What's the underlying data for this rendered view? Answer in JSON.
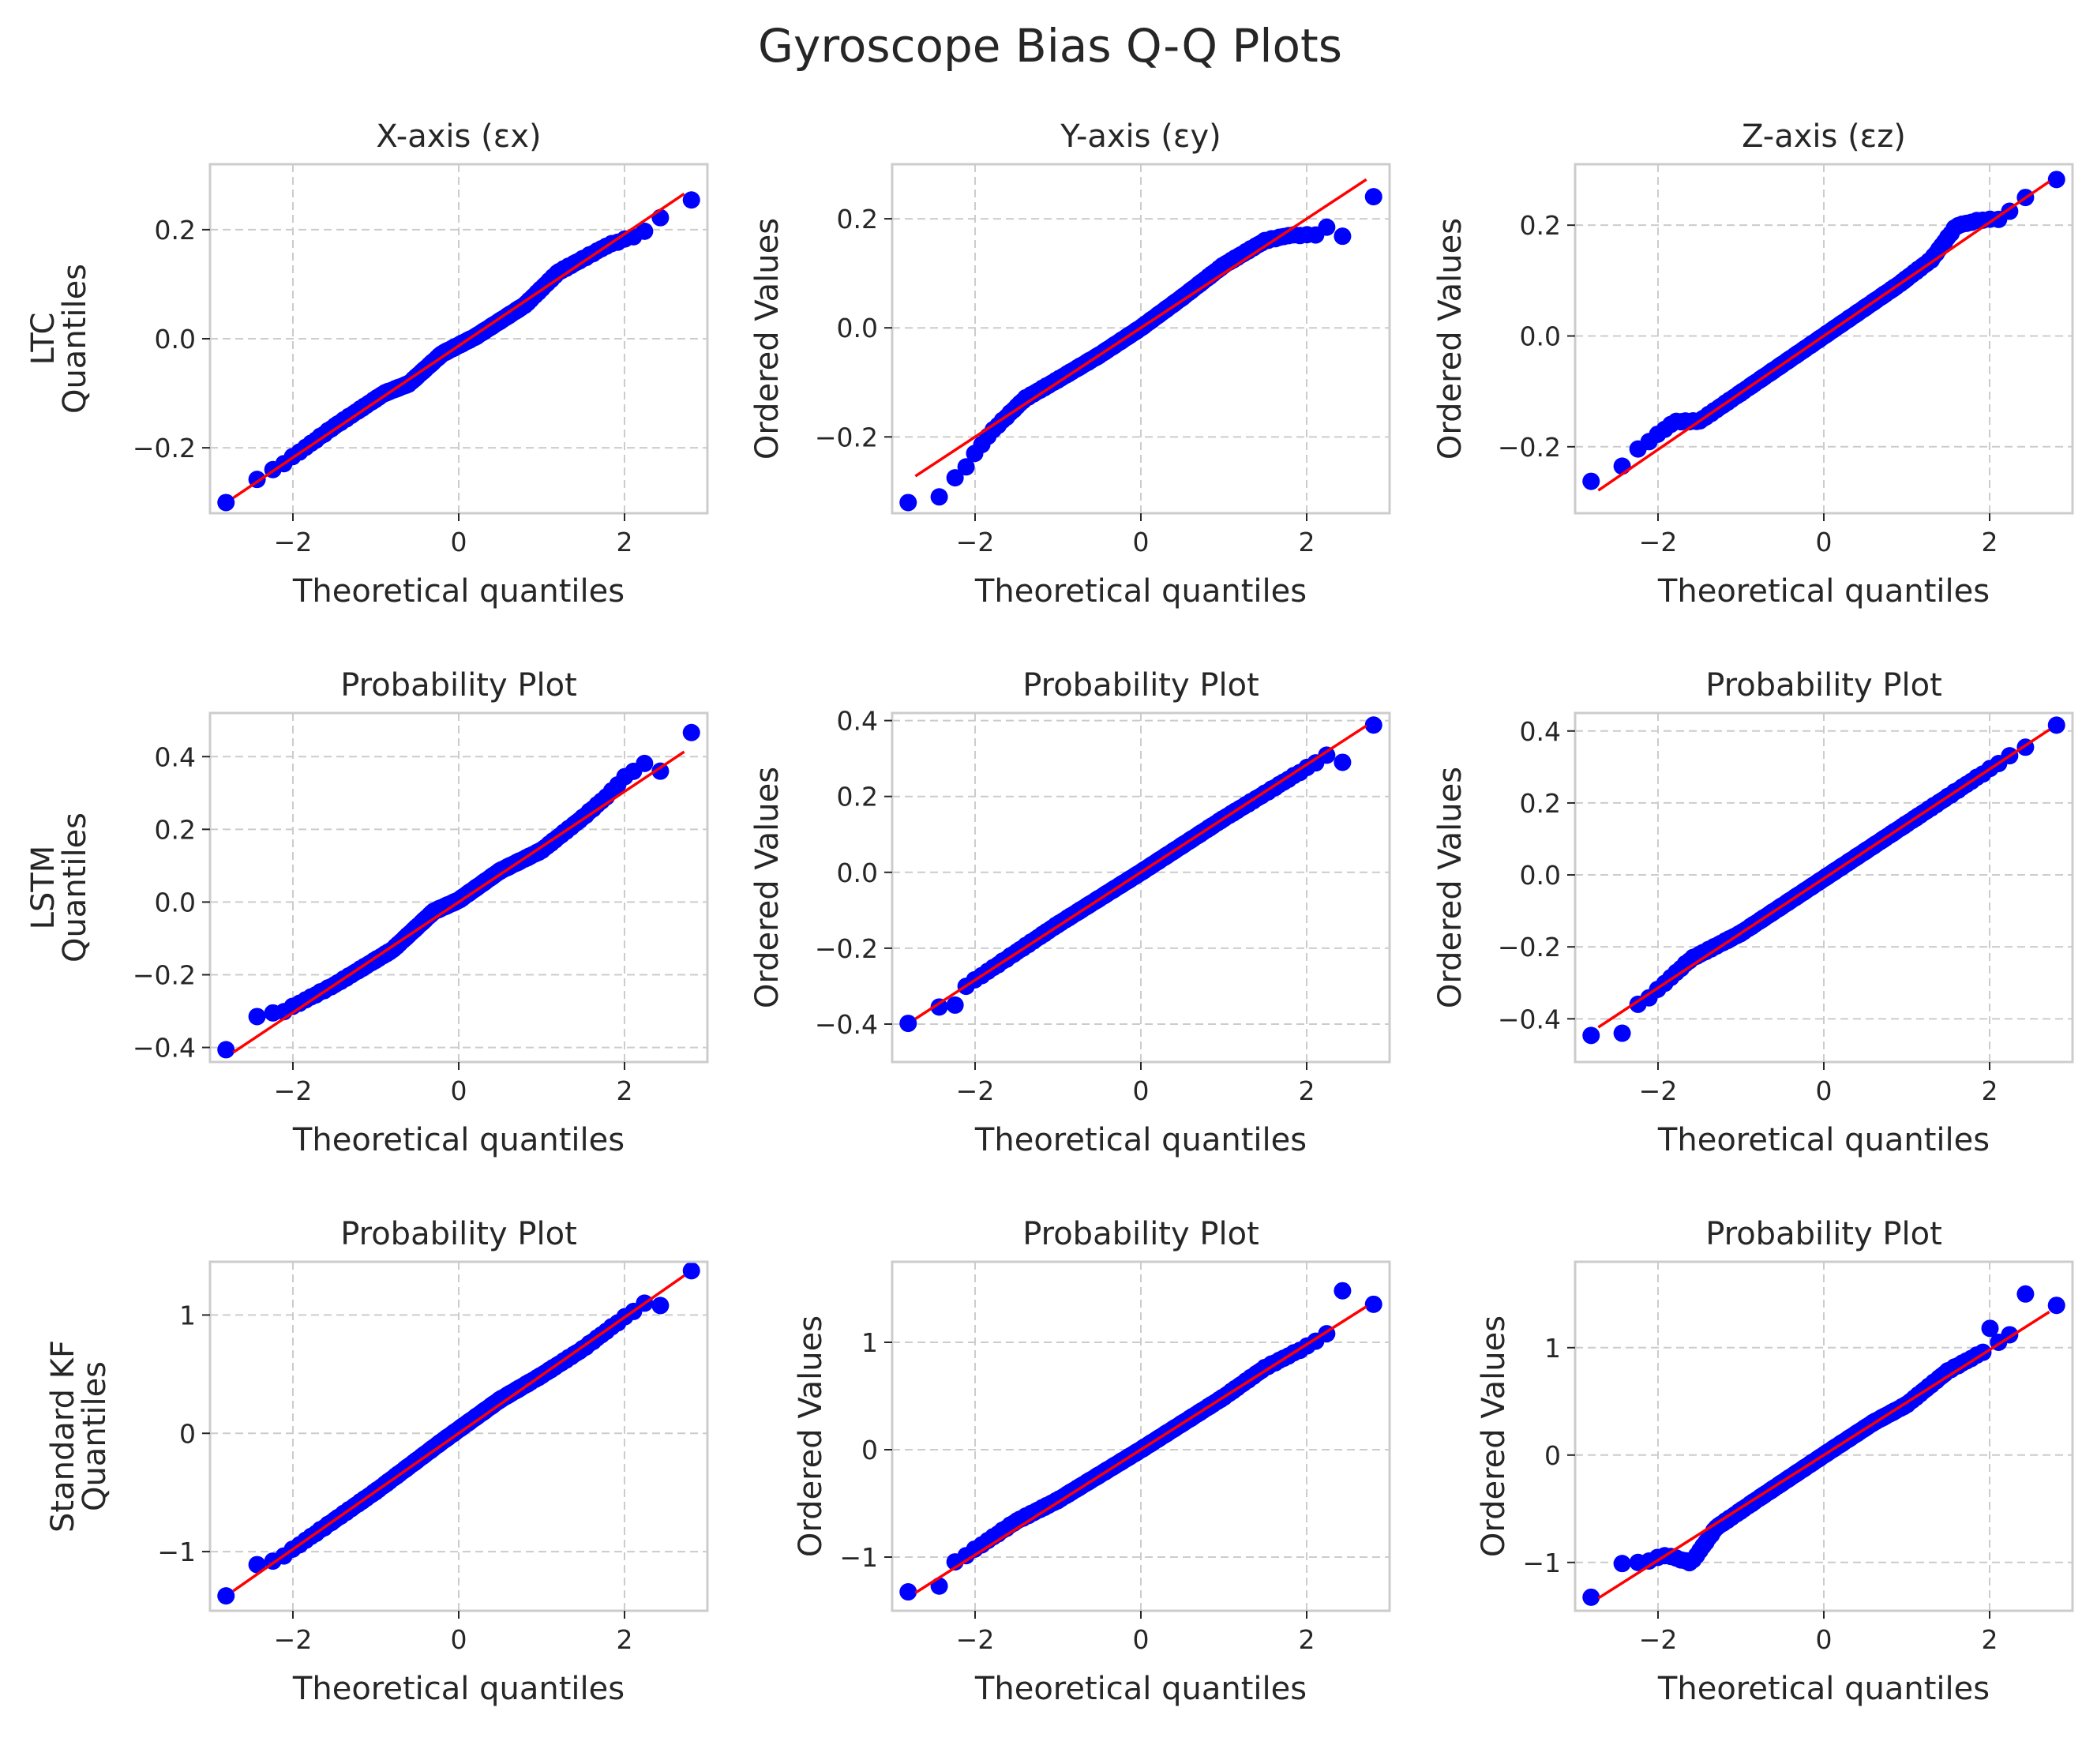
{
  "figure_title": "Gyroscope Bias Q-Q Plots",
  "row_labels": [
    [
      "LTC",
      "Quantiles"
    ],
    [
      "LSTM",
      "Quantiles"
    ],
    [
      "Standard KF",
      "Quantiles"
    ]
  ],
  "colors": {
    "points": "#0000ff",
    "fit_line": "#ff0000",
    "grid": "#cccccc",
    "text": "#262626"
  },
  "chart_data": [
    {
      "type": "scatter",
      "title": "X-axis (εx)",
      "xlabel": "Theoretical quantiles",
      "ylabel": "",
      "xlim": [
        -3,
        3
      ],
      "ylim": [
        -0.32,
        0.32
      ],
      "xticks": [
        -2,
        0,
        2
      ],
      "xtick_labels": [
        "−2",
        "0",
        "2"
      ],
      "yticks": [
        -0.2,
        0,
        0.2
      ],
      "ytick_labels": [
        "−0.2",
        "0.0",
        "0.2"
      ],
      "grid": true,
      "fit": {
        "slope": 0.1025,
        "intercept": -0.013
      },
      "outliers": [
        [
          -2.72,
          -0.265
        ],
        [
          -2.4,
          -0.258
        ],
        [
          -2.25,
          -0.24
        ],
        [
          2.4,
          0.222
        ],
        [
          2.72,
          0.288
        ]
      ],
      "deviation": [
        [
          -2.2,
          0.0
        ],
        [
          -1.5,
          0.006
        ],
        [
          -0.9,
          0.005
        ],
        [
          -0.6,
          -0.008
        ],
        [
          -0.2,
          0.006
        ],
        [
          0.2,
          -0.004
        ],
        [
          0.8,
          -0.007
        ],
        [
          1.2,
          0.012
        ],
        [
          1.8,
          0.0
        ],
        [
          2.2,
          -0.02
        ]
      ]
    },
    {
      "type": "scatter",
      "title": "Y-axis (εy)",
      "xlabel": "Theoretical quantiles",
      "ylabel": "Ordered Values",
      "xlim": [
        -3,
        3
      ],
      "ylim": [
        -0.34,
        0.3
      ],
      "xticks": [
        -2,
        0,
        2
      ],
      "xtick_labels": [
        "−2",
        "0",
        "2"
      ],
      "yticks": [
        -0.2,
        0,
        0.2
      ],
      "ytick_labels": [
        "−0.2",
        "0.0",
        "0.2"
      ],
      "grid": true,
      "fit": {
        "slope": 0.1,
        "intercept": 0.0
      },
      "outliers": [
        [
          -2.72,
          -0.318
        ],
        [
          -2.4,
          -0.31
        ],
        [
          -2.25,
          -0.275
        ],
        [
          -2.12,
          -0.255
        ],
        [
          2.4,
          0.168
        ],
        [
          2.72,
          0.268
        ]
      ],
      "deviation": [
        [
          -2.1,
          -0.04
        ],
        [
          -1.8,
          -0.01
        ],
        [
          -1.4,
          0.01
        ],
        [
          -1.0,
          0.005
        ],
        [
          -0.5,
          0.0
        ],
        [
          0.0,
          0.0
        ],
        [
          0.5,
          0.006
        ],
        [
          1.0,
          0.015
        ],
        [
          1.5,
          0.01
        ],
        [
          1.8,
          -0.01
        ],
        [
          2.1,
          -0.04
        ]
      ]
    },
    {
      "type": "scatter",
      "title": "Z-axis (εz)",
      "xlabel": "Theoretical quantiles",
      "ylabel": "Ordered Values",
      "xlim": [
        -3,
        3
      ],
      "ylim": [
        -0.32,
        0.31
      ],
      "xticks": [
        -2,
        0,
        2
      ],
      "xtick_labels": [
        "−2",
        "0",
        "2"
      ],
      "yticks": [
        -0.2,
        0,
        0.2
      ],
      "ytick_labels": [
        "−0.2",
        "0.0",
        "0.2"
      ],
      "grid": true,
      "fit": {
        "slope": 0.1025,
        "intercept": 0.0
      },
      "outliers": [
        [
          -2.72,
          -0.27
        ],
        [
          -2.4,
          -0.235
        ],
        [
          2.2,
          0.24
        ],
        [
          2.4,
          0.25
        ],
        [
          2.72,
          0.285
        ]
      ],
      "deviation": [
        [
          -2.2,
          0.025
        ],
        [
          -1.8,
          0.03
        ],
        [
          -1.5,
          0.0
        ],
        [
          -1.0,
          0.0
        ],
        [
          0.0,
          0.0
        ],
        [
          0.9,
          0.0
        ],
        [
          1.3,
          0.005
        ],
        [
          1.6,
          0.035
        ],
        [
          1.9,
          0.015
        ],
        [
          2.1,
          -0.005
        ]
      ]
    },
    {
      "type": "scatter",
      "title": "Probability Plot",
      "xlabel": "Theoretical quantiles",
      "ylabel": "",
      "xlim": [
        -3,
        3
      ],
      "ylim": [
        -0.44,
        0.52
      ],
      "xticks": [
        -2,
        0,
        2
      ],
      "xtick_labels": [
        "−2",
        "0",
        "2"
      ],
      "yticks": [
        -0.4,
        -0.2,
        0,
        0.2,
        0.4
      ],
      "ytick_labels": [
        "−0.4",
        "−0.2",
        "0.0",
        "0.2",
        "0.4"
      ],
      "grid": true,
      "fit": {
        "slope": 0.152,
        "intercept": 0.0
      },
      "outliers": [
        [
          -2.72,
          -0.36
        ],
        [
          -2.4,
          -0.315
        ],
        [
          -2.25,
          -0.305
        ],
        [
          2.0,
          0.345
        ],
        [
          2.2,
          0.355
        ],
        [
          2.4,
          0.36
        ],
        [
          2.72,
          0.475
        ]
      ],
      "deviation": [
        [
          -2.1,
          0.02
        ],
        [
          -1.5,
          0.0
        ],
        [
          -0.8,
          -0.01
        ],
        [
          -0.3,
          0.02
        ],
        [
          0.0,
          0.005
        ],
        [
          0.5,
          0.01
        ],
        [
          1.0,
          -0.01
        ],
        [
          1.5,
          0.005
        ],
        [
          1.8,
          0.02
        ],
        [
          2.0,
          0.04
        ]
      ]
    },
    {
      "type": "scatter",
      "title": "Probability Plot",
      "xlabel": "Theoretical quantiles",
      "ylabel": "Ordered Values",
      "xlim": [
        -3,
        3
      ],
      "ylim": [
        -0.5,
        0.42
      ],
      "xticks": [
        -2,
        0,
        2
      ],
      "xtick_labels": [
        "−2",
        "0",
        "2"
      ],
      "yticks": [
        -0.4,
        -0.2,
        0,
        0.2,
        0.4
      ],
      "ytick_labels": [
        "−0.4",
        "−0.2",
        "0.0",
        "0.2",
        "0.4"
      ],
      "grid": true,
      "fit": {
        "slope": 0.142,
        "intercept": 0.0
      },
      "outliers": [
        [
          -2.72,
          -0.46
        ],
        [
          -2.4,
          -0.355
        ],
        [
          -2.25,
          -0.35
        ],
        [
          2.4,
          0.29
        ],
        [
          2.72,
          0.315
        ]
      ],
      "deviation": [
        [
          -2.1,
          0.0
        ],
        [
          -1.0,
          0.005
        ],
        [
          0.0,
          0.0
        ],
        [
          1.0,
          0.0
        ],
        [
          2.1,
          -0.01
        ]
      ]
    },
    {
      "type": "scatter",
      "title": "Probability Plot",
      "xlabel": "Theoretical quantiles",
      "ylabel": "Ordered Values",
      "xlim": [
        -3,
        3
      ],
      "ylim": [
        -0.52,
        0.45
      ],
      "xticks": [
        -2,
        0,
        2
      ],
      "xtick_labels": [
        "−2",
        "0",
        "2"
      ],
      "yticks": [
        -0.4,
        -0.2,
        0,
        0.2,
        0.4
      ],
      "ytick_labels": [
        "−0.4",
        "−0.2",
        "0.0",
        "0.2",
        "0.4"
      ],
      "grid": true,
      "fit": {
        "slope": 0.152,
        "intercept": -0.01
      },
      "outliers": [
        [
          -2.72,
          -0.485
        ],
        [
          -2.4,
          -0.44
        ],
        [
          -2.2,
          -0.38
        ],
        [
          2.2,
          0.335
        ],
        [
          2.4,
          0.355
        ],
        [
          2.72,
          0.375
        ]
      ],
      "deviation": [
        [
          -2.1,
          -0.01
        ],
        [
          -1.6,
          0.02
        ],
        [
          -1.0,
          0.0
        ],
        [
          0.0,
          0.0
        ],
        [
          1.0,
          0.0
        ],
        [
          2.0,
          0.0
        ]
      ]
    },
    {
      "type": "scatter",
      "title": "Probability Plot",
      "xlabel": "Theoretical quantiles",
      "ylabel": "",
      "xlim": [
        -3,
        3
      ],
      "ylim": [
        -1.5,
        1.45
      ],
      "xticks": [
        -2,
        0,
        2
      ],
      "xtick_labels": [
        "−2",
        "0",
        "2"
      ],
      "yticks": [
        -1,
        0,
        1
      ],
      "ytick_labels": [
        "−1",
        "0",
        "1"
      ],
      "grid": true,
      "fit": {
        "slope": 0.49,
        "intercept": 0.0
      },
      "outliers": [
        [
          -2.72,
          -1.22
        ],
        [
          -2.4,
          -1.11
        ],
        [
          -2.25,
          -1.08
        ],
        [
          2.2,
          1.05
        ],
        [
          2.4,
          1.08
        ],
        [
          2.72,
          1.22
        ]
      ],
      "deviation": [
        [
          -2.1,
          0.0
        ],
        [
          -1.0,
          0.0
        ],
        [
          -0.2,
          0.03
        ],
        [
          0.5,
          0.04
        ],
        [
          1.0,
          0.0
        ],
        [
          1.5,
          -0.02
        ],
        [
          2.0,
          0.0
        ]
      ]
    },
    {
      "type": "scatter",
      "title": "Probability Plot",
      "xlabel": "Theoretical quantiles",
      "ylabel": "Ordered Values",
      "xlim": [
        -3,
        3
      ],
      "ylim": [
        -1.5,
        1.75
      ],
      "xticks": [
        -2,
        0,
        2
      ],
      "xtick_labels": [
        "−2",
        "0",
        "2"
      ],
      "yticks": [
        -1,
        0,
        1
      ],
      "ytick_labels": [
        "−1",
        "0",
        "1"
      ],
      "grid": true,
      "fit": {
        "slope": 0.49,
        "intercept": 0.0
      },
      "outliers": [
        [
          -2.72,
          -1.3
        ],
        [
          -2.4,
          -1.27
        ],
        [
          -2.2,
          -0.98
        ],
        [
          2.2,
          1.25
        ],
        [
          2.4,
          1.48
        ],
        [
          2.72,
          1.62
        ]
      ],
      "deviation": [
        [
          -2.1,
          0.05
        ],
        [
          -1.5,
          0.07
        ],
        [
          -1.0,
          0.02
        ],
        [
          0.0,
          0.0
        ],
        [
          1.0,
          0.0
        ],
        [
          1.5,
          0.03
        ],
        [
          2.0,
          -0.02
        ]
      ]
    },
    {
      "type": "scatter",
      "title": "Probability Plot",
      "xlabel": "Theoretical quantiles",
      "ylabel": "Ordered Values",
      "xlim": [
        -3,
        3
      ],
      "ylim": [
        -1.45,
        1.8
      ],
      "xticks": [
        -2,
        0,
        2
      ],
      "xtick_labels": [
        "−2",
        "0",
        "2"
      ],
      "yticks": [
        -1,
        0,
        1
      ],
      "ytick_labels": [
        "−1",
        "0",
        "1"
      ],
      "grid": true,
      "fit": {
        "slope": 0.49,
        "intercept": 0.0
      },
      "outliers": [
        [
          -2.72,
          -1.02
        ],
        [
          -2.4,
          -1.01
        ],
        [
          -2.25,
          -1.0
        ],
        [
          2.0,
          1.18
        ],
        [
          2.2,
          1.28
        ],
        [
          2.4,
          1.5
        ],
        [
          2.72,
          1.67
        ]
      ],
      "deviation": [
        [
          -2.1,
          0.05
        ],
        [
          -1.9,
          0.0
        ],
        [
          -1.6,
          -0.22
        ],
        [
          -1.3,
          -0.04
        ],
        [
          -0.8,
          -0.02
        ],
        [
          0.0,
          0.0
        ],
        [
          0.6,
          0.01
        ],
        [
          1.0,
          -0.02
        ],
        [
          1.5,
          0.05
        ],
        [
          1.9,
          0.02
        ]
      ]
    }
  ]
}
